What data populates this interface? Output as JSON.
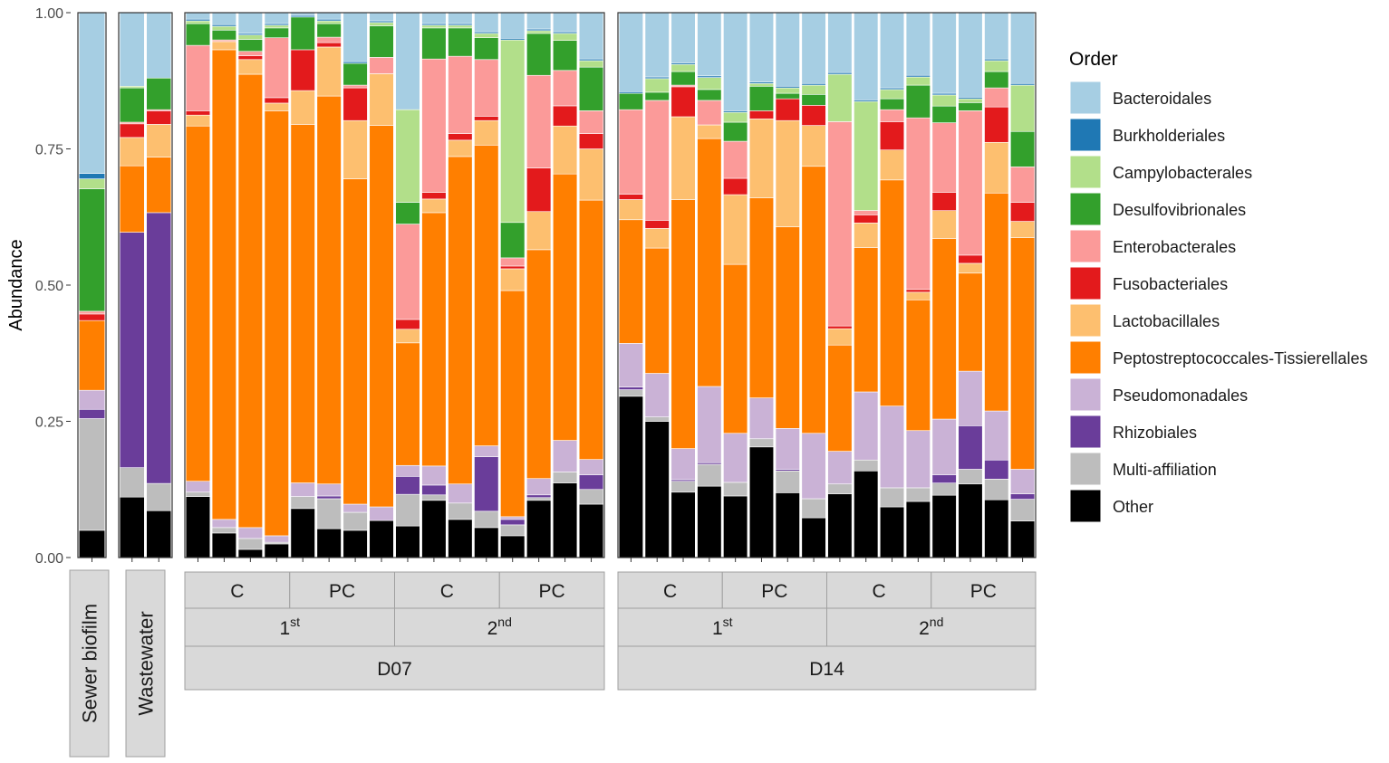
{
  "chart_data": {
    "type": "bar",
    "stacked": true,
    "ylabel": "Abundance",
    "ylim": [
      0,
      1
    ],
    "y_ticks": [
      "0.00",
      "0.25",
      "0.50",
      "0.75",
      "1.00"
    ],
    "legend": {
      "title": "Order",
      "position": "right",
      "entries": [
        {
          "name": "Bacteroidales",
          "color": "#A6CEE3"
        },
        {
          "name": "Burkholderiales",
          "color": "#1F78B4"
        },
        {
          "name": "Campylobacterales",
          "color": "#B2DF8A"
        },
        {
          "name": "Desulfovibrionales",
          "color": "#33A02C"
        },
        {
          "name": "Enterobacterales",
          "color": "#FB9A99"
        },
        {
          "name": "Fusobacteriales",
          "color": "#E31A1C"
        },
        {
          "name": "Lactobacillales",
          "color": "#FDBF6F"
        },
        {
          "name": "Peptostreptococcales-Tissierellales",
          "color": "#FF7F00"
        },
        {
          "name": "Pseudomonadales",
          "color": "#CAB2D6"
        },
        {
          "name": "Rhizobiales",
          "color": "#6A3D9A"
        },
        {
          "name": "Multi-affiliation",
          "color": "#BDBDBD"
        },
        {
          "name": "Other",
          "color": "#000000"
        }
      ]
    },
    "stack_order_bottom_to_top": [
      "Other",
      "Multi-affiliation",
      "Rhizobiales",
      "Pseudomonadales",
      "Peptostreptococcales-Tissierellales",
      "Lactobacillales",
      "Fusobacteriales",
      "Enterobacterales",
      "Desulfovibrionales",
      "Campylobacterales",
      "Burkholderiales",
      "Bacteroidales"
    ],
    "panels": [
      {
        "label": "Sewer biofilm",
        "samples": [
          [
            0.295,
            0.01,
            0.018,
            0.225,
            0.005,
            0.012,
            0.0,
            0.128,
            0.035,
            0.017,
            0.205,
            0.05
          ]
        ]
      },
      {
        "label": "Wastewater",
        "samples": [
          [
            0.135,
            0.0,
            0.003,
            0.063,
            0.003,
            0.025,
            0.052,
            0.122,
            0.0,
            0.432,
            0.054,
            0.111
          ],
          [
            0.12,
            0.0,
            0.0,
            0.058,
            0.002,
            0.025,
            0.06,
            0.102,
            0.0,
            0.497,
            0.05,
            0.086
          ]
        ]
      },
      {
        "label": "D07",
        "groups": [
          {
            "label": "1",
            "superscript": "st",
            "span": 8
          },
          {
            "label": "2",
            "superscript": "nd",
            "span": 8
          }
        ],
        "subgroups": [
          {
            "label": "C",
            "span": 4
          },
          {
            "label": "PC",
            "span": 4
          },
          {
            "label": "C",
            "span": 4
          },
          {
            "label": "PC",
            "span": 4
          }
        ],
        "samples": [
          [
            0.012,
            0.003,
            0.005,
            0.04,
            0.12,
            0.008,
            0.02,
            0.652,
            0.02,
            0.0,
            0.008,
            0.112
          ],
          [
            0.022,
            0.003,
            0.007,
            0.018,
            0.003,
            0.0,
            0.015,
            0.862,
            0.015,
            0.0,
            0.01,
            0.045
          ],
          [
            0.038,
            0.003,
            0.008,
            0.022,
            0.008,
            0.007,
            0.027,
            0.832,
            0.02,
            0.0,
            0.02,
            0.015
          ],
          [
            0.02,
            0.003,
            0.005,
            0.018,
            0.11,
            0.01,
            0.014,
            0.78,
            0.012,
            0.0,
            0.003,
            0.025
          ],
          [
            0.005,
            0.003,
            0.0,
            0.06,
            0.0,
            0.075,
            0.062,
            0.658,
            0.025,
            0.0,
            0.022,
            0.09
          ],
          [
            0.012,
            0.003,
            0.005,
            0.025,
            0.01,
            0.008,
            0.09,
            0.712,
            0.022,
            0.005,
            0.055,
            0.053
          ],
          [
            0.09,
            0.003,
            0.0,
            0.04,
            0.005,
            0.06,
            0.107,
            0.597,
            0.015,
            0.0,
            0.033,
            0.05
          ],
          [
            0.015,
            0.003,
            0.006,
            0.058,
            0.03,
            0.0,
            0.095,
            0.7,
            0.025,
            0.0,
            0.0,
            0.068
          ],
          [
            0.178,
            0.0,
            0.17,
            0.04,
            0.175,
            0.018,
            0.025,
            0.225,
            0.02,
            0.033,
            0.058,
            0.058
          ],
          [
            0.02,
            0.003,
            0.005,
            0.057,
            0.245,
            0.012,
            0.025,
            0.465,
            0.035,
            0.018,
            0.01,
            0.105
          ],
          [
            0.02,
            0.003,
            0.005,
            0.052,
            0.142,
            0.012,
            0.03,
            0.601,
            0.035,
            0.0,
            0.03,
            0.07
          ],
          [
            0.035,
            0.003,
            0.008,
            0.04,
            0.104,
            0.008,
            0.045,
            0.552,
            0.02,
            0.1,
            0.03,
            0.055
          ],
          [
            0.047,
            0.003,
            0.335,
            0.065,
            0.015,
            0.005,
            0.04,
            0.415,
            0.005,
            0.01,
            0.02,
            0.04
          ],
          [
            0.03,
            0.003,
            0.005,
            0.077,
            0.17,
            0.08,
            0.07,
            0.42,
            0.03,
            0.005,
            0.005,
            0.105
          ],
          [
            0.035,
            0.003,
            0.013,
            0.055,
            0.065,
            0.037,
            0.088,
            0.489,
            0.058,
            0.0,
            0.02,
            0.137
          ],
          [
            0.085,
            0.003,
            0.012,
            0.08,
            0.042,
            0.028,
            0.094,
            0.476,
            0.028,
            0.027,
            0.027,
            0.098
          ]
        ]
      },
      {
        "label": "D14",
        "groups": [
          {
            "label": "1",
            "superscript": "st",
            "span": 8
          },
          {
            "label": "2",
            "superscript": "nd",
            "span": 8
          }
        ],
        "subgroups": [
          {
            "label": "C",
            "span": 4
          },
          {
            "label": "PC",
            "span": 4
          },
          {
            "label": "C",
            "span": 4
          },
          {
            "label": "PC",
            "span": 4
          }
        ],
        "samples": [
          [
            0.145,
            0.003,
            0.0,
            0.03,
            0.155,
            0.01,
            0.037,
            0.227,
            0.08,
            0.005,
            0.012,
            0.296
          ],
          [
            0.118,
            0.003,
            0.025,
            0.015,
            0.22,
            0.015,
            0.036,
            0.23,
            0.08,
            0.0,
            0.008,
            0.25
          ],
          [
            0.092,
            0.003,
            0.013,
            0.025,
            0.003,
            0.055,
            0.152,
            0.457,
            0.057,
            0.003,
            0.02,
            0.12
          ],
          [
            0.116,
            0.003,
            0.022,
            0.02,
            0.045,
            0.0,
            0.025,
            0.455,
            0.14,
            0.003,
            0.04,
            0.131
          ],
          [
            0.18,
            0.003,
            0.018,
            0.035,
            0.068,
            0.03,
            0.128,
            0.31,
            0.09,
            0.0,
            0.025,
            0.113
          ],
          [
            0.127,
            0.003,
            0.005,
            0.045,
            0.0,
            0.015,
            0.145,
            0.367,
            0.075,
            0.0,
            0.015,
            0.203
          ],
          [
            0.135,
            0.003,
            0.01,
            0.01,
            0.0,
            0.04,
            0.195,
            0.37,
            0.075,
            0.003,
            0.04,
            0.119
          ],
          [
            0.13,
            0.003,
            0.017,
            0.02,
            0.0,
            0.037,
            0.075,
            0.49,
            0.12,
            0.0,
            0.035,
            0.073
          ],
          [
            0.11,
            0.003,
            0.087,
            0.0,
            0.375,
            0.005,
            0.03,
            0.195,
            0.06,
            0.0,
            0.018,
            0.117
          ],
          [
            0.16,
            0.003,
            0.2,
            0.0,
            0.008,
            0.015,
            0.045,
            0.265,
            0.125,
            0.0,
            0.02,
            0.159
          ],
          [
            0.138,
            0.003,
            0.017,
            0.02,
            0.022,
            0.052,
            0.055,
            0.415,
            0.15,
            0.0,
            0.035,
            0.093
          ],
          [
            0.115,
            0.003,
            0.015,
            0.06,
            0.315,
            0.005,
            0.014,
            0.24,
            0.105,
            0.0,
            0.025,
            0.103
          ],
          [
            0.145,
            0.003,
            0.02,
            0.03,
            0.125,
            0.033,
            0.05,
            0.325,
            0.1,
            0.015,
            0.022,
            0.112
          ],
          [
            0.155,
            0.003,
            0.007,
            0.015,
            0.265,
            0.015,
            0.018,
            0.18,
            0.1,
            0.08,
            0.027,
            0.135
          ],
          [
            0.085,
            0.003,
            0.02,
            0.03,
            0.035,
            0.065,
            0.093,
            0.4,
            0.09,
            0.035,
            0.038,
            0.106
          ],
          [
            0.13,
            0.003,
            0.085,
            0.065,
            0.065,
            0.035,
            0.03,
            0.425,
            0.045,
            0.01,
            0.04,
            0.067
          ]
        ]
      }
    ]
  }
}
